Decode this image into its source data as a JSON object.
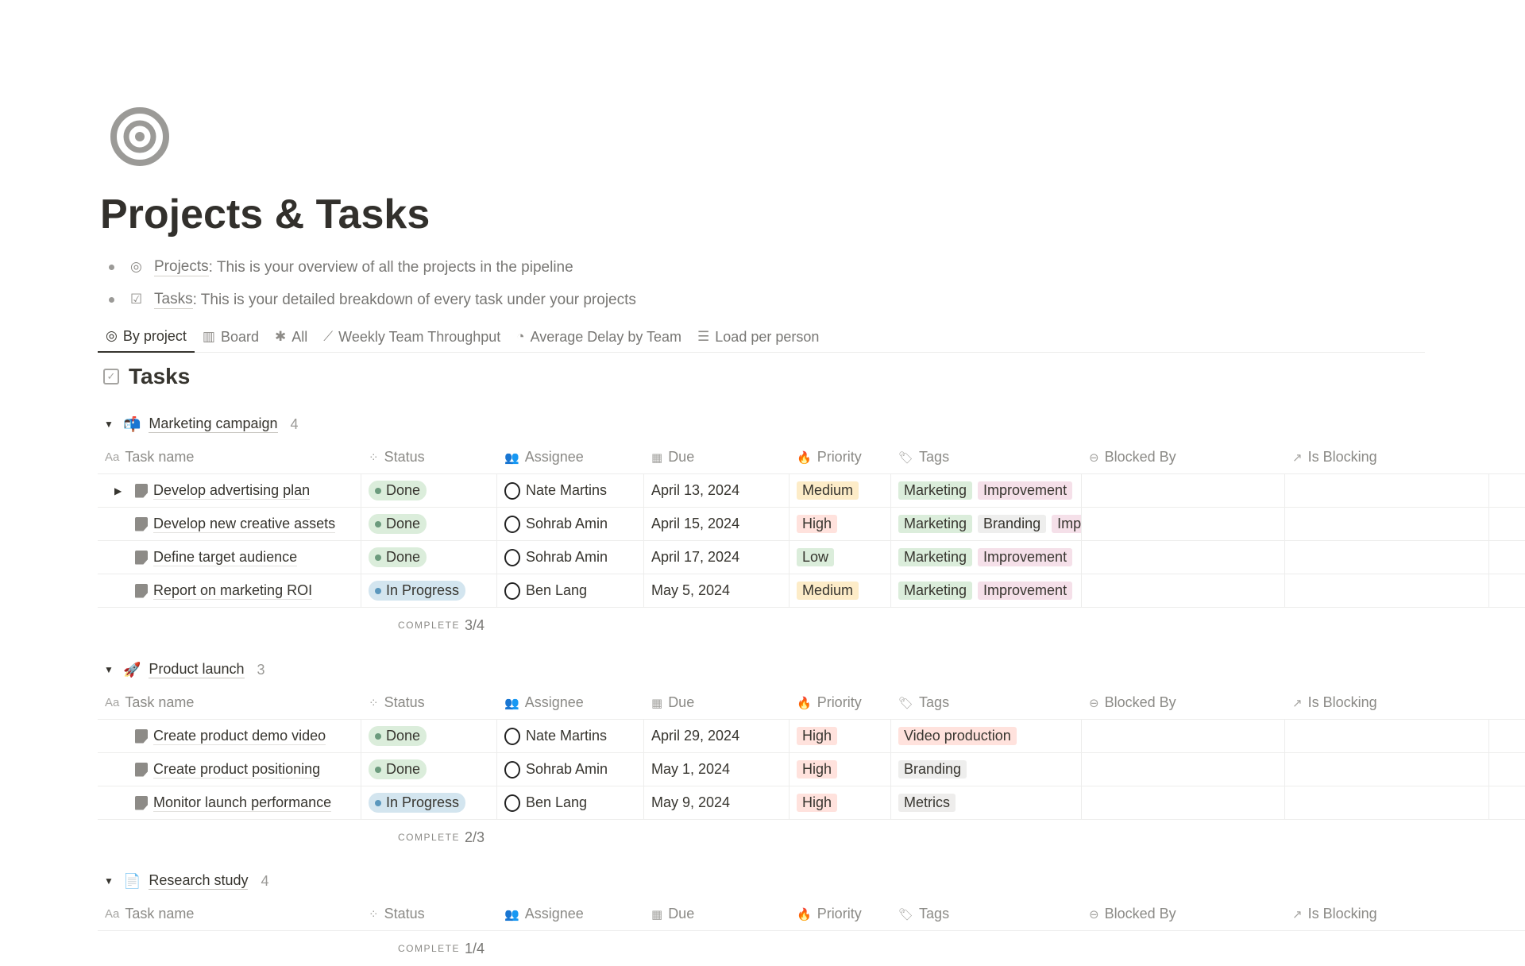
{
  "page": {
    "title": "Projects & Tasks",
    "icon": "target-icon",
    "bullets": [
      {
        "link": "Projects",
        "text": ": This is your overview of all the projects in the pipeline"
      },
      {
        "link": "Tasks",
        "text": ": This is your detailed breakdown of every task under your projects"
      }
    ]
  },
  "tabs": [
    {
      "label": "By project",
      "icon": "target"
    },
    {
      "label": "Board",
      "icon": "columns"
    },
    {
      "label": "All",
      "icon": "asterisk"
    },
    {
      "label": "Weekly Team Throughput",
      "icon": "line-chart"
    },
    {
      "label": "Average Delay by Team",
      "icon": "pie-chart"
    },
    {
      "label": "Load per person",
      "icon": "bar-chart"
    }
  ],
  "database": {
    "title": "Tasks"
  },
  "columns": [
    "Task name",
    "Status",
    "Assignee",
    "Due",
    "Priority",
    "Tags",
    "Blocked By",
    "Is Blocking"
  ],
  "complete_label": "COMPLETE",
  "colors": {
    "done_bg": "#dbeddb",
    "done_dot": "#6c9b7d",
    "progress_bg": "#d3e5ef",
    "progress_dot": "#5b97bd",
    "medium_bg": "#fdecc8",
    "high_bg": "#ffe2dd",
    "low_bg": "#dbeddb",
    "marketing_bg": "#dbeddb",
    "improvement_bg": "#f5e0e9",
    "branding_bg": "#eeeeed",
    "video_bg": "#ffe2dd",
    "metrics_bg": "#eeedec"
  },
  "groups": [
    {
      "name": "Marketing campaign",
      "emoji": "📬",
      "count": "4",
      "complete": "3/4",
      "rows": [
        {
          "name": "Develop advertising plan",
          "expand": true,
          "status": "Done",
          "assignee": "Nate Martins",
          "due": "April 13, 2024",
          "priority": "Medium",
          "tags": [
            "Marketing",
            "Improvement"
          ]
        },
        {
          "name": "Develop new creative assets",
          "status": "Done",
          "assignee": "Sohrab Amin",
          "due": "April 15, 2024",
          "priority": "High",
          "tags": [
            "Marketing",
            "Branding",
            "Improvement"
          ]
        },
        {
          "name": "Define target audience",
          "status": "Done",
          "assignee": "Sohrab Amin",
          "due": "April 17, 2024",
          "priority": "Low",
          "tags": [
            "Marketing",
            "Improvement"
          ]
        },
        {
          "name": "Report on marketing ROI",
          "status": "In Progress",
          "assignee": "Ben Lang",
          "due": "May 5, 2024",
          "priority": "Medium",
          "tags": [
            "Marketing",
            "Improvement"
          ]
        }
      ]
    },
    {
      "name": "Product launch",
      "emoji": "🚀",
      "count": "3",
      "complete": "2/3",
      "rows": [
        {
          "name": "Create product demo video",
          "status": "Done",
          "assignee": "Nate Martins",
          "due": "April 29, 2024",
          "priority": "High",
          "tags": [
            "Video production"
          ]
        },
        {
          "name": "Create product positioning",
          "status": "Done",
          "assignee": "Sohrab Amin",
          "due": "May 1, 2024",
          "priority": "High",
          "tags": [
            "Branding"
          ]
        },
        {
          "name": "Monitor launch performance",
          "status": "In Progress",
          "assignee": "Ben Lang",
          "due": "May 9, 2024",
          "priority": "High",
          "tags": [
            "Metrics"
          ]
        }
      ]
    },
    {
      "name": "Research study",
      "emoji": "📄",
      "count": "4",
      "complete": "1/4",
      "rows": []
    }
  ]
}
